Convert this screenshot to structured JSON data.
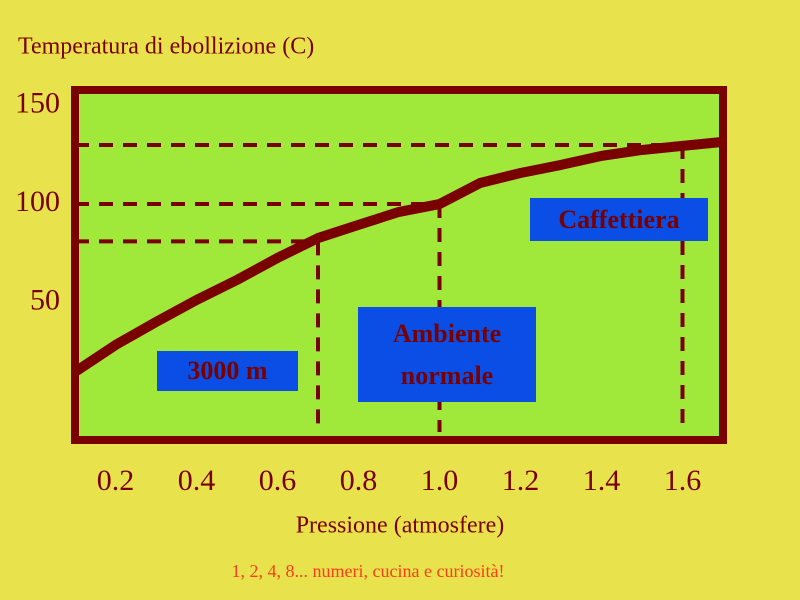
{
  "chart_data": {
    "type": "line",
    "y_label": "Temperatura di ebollizione (C)",
    "x_label": "Pressione (atmosfere)",
    "footer": "1, 2, 4, 8... numeri, cucina e curiosità!",
    "x": [
      0.1,
      0.2,
      0.3,
      0.4,
      0.5,
      0.6,
      0.7,
      0.8,
      0.9,
      1.0,
      1.1,
      1.2,
      1.3,
      1.4,
      1.5,
      1.6,
      1.7
    ],
    "series": [
      {
        "color": "#7a0000",
        "values": [
          14.6,
          28.3,
          40,
          51.2,
          61.4,
          72.6,
          82.7,
          89.4,
          96,
          100,
          110.7,
          115.8,
          119.9,
          124.5,
          127.5,
          129.6,
          131.6
        ]
      }
    ],
    "reference_points": [
      {
        "x": 0.7,
        "y": 81
      },
      {
        "x": 1.0,
        "y": 100
      },
      {
        "x": 1.6,
        "y": 130
      }
    ],
    "annotations": [
      "3000 m",
      "Ambiente normale",
      "Caffettiera"
    ],
    "xlim": [
      0.1,
      1.7
    ],
    "ylim": [
      -20,
      158
    ],
    "xticks": [
      0.2,
      0.4,
      0.6,
      0.8,
      {
        "value": 1,
        "label": "1.0"
      },
      1.2,
      1.4,
      1.6
    ],
    "yticks": [
      50,
      100,
      150
    ],
    "plot_color": "#a0e83a"
  }
}
